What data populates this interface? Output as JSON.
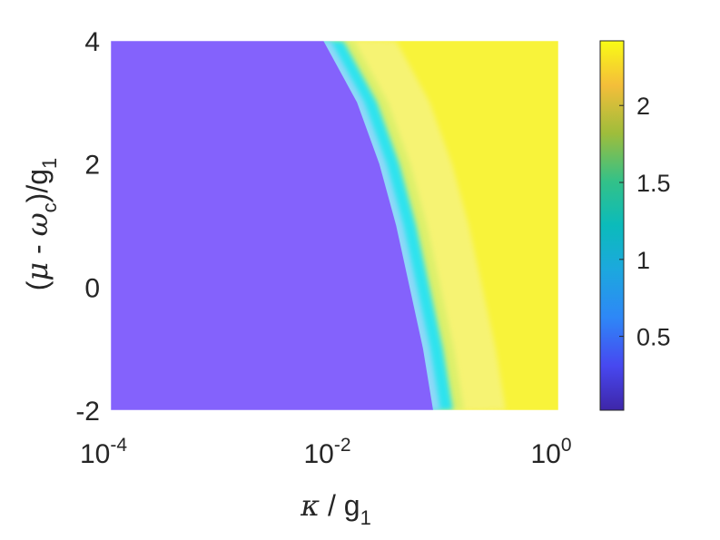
{
  "chart_data": {
    "type": "heatmap",
    "title": "",
    "x_scale": "log",
    "xlim": [
      0.0001,
      1
    ],
    "ylim": [
      -2,
      4
    ],
    "x_ticks": [
      {
        "value": 0.0001,
        "base": "10",
        "exp": "-4"
      },
      {
        "value": 0.01,
        "base": "10",
        "exp": "-2"
      },
      {
        "value": 1,
        "base": "10",
        "exp": "0"
      }
    ],
    "y_ticks": [
      {
        "value": -2,
        "label": "-2"
      },
      {
        "value": 0,
        "label": "0"
      },
      {
        "value": 2,
        "label": "2"
      },
      {
        "value": 4,
        "label": "4"
      }
    ],
    "xlabel": {
      "symbol": "κ",
      "text": " / g",
      "sub": "1"
    },
    "ylabel": {
      "open": "(",
      "mu": "μ",
      "mid": " - ",
      "omega": "ω",
      "sub_c": "c",
      "close": ")/g",
      "sub_1": "1"
    },
    "colorbar": {
      "colormap": "parula",
      "clim": [
        0.02,
        2.42
      ],
      "ticks": [
        {
          "value": 0.5,
          "label": "0.5"
        },
        {
          "value": 1,
          "label": "1"
        },
        {
          "value": 1.5,
          "label": "1.5"
        },
        {
          "value": 2,
          "label": "2"
        }
      ]
    },
    "regions": {
      "low_value": 0.2,
      "boundary_value": 1.0,
      "high_value": 2.3,
      "boundary_curve": [
        {
          "y": 4.0,
          "log10_kappa": -2.1
        },
        {
          "y": 3.0,
          "log10_kappa": -1.8
        },
        {
          "y": 2.0,
          "log10_kappa": -1.6
        },
        {
          "y": 1.0,
          "log10_kappa": -1.45
        },
        {
          "y": 0.0,
          "log10_kappa": -1.33
        },
        {
          "y": -1.0,
          "log10_kappa": -1.21
        },
        {
          "y": -2.0,
          "log10_kappa": -1.12
        }
      ]
    },
    "colors": {
      "low": "#8462fc",
      "boundary": "#2ee3ee",
      "high": "#f8f33a",
      "high_pale": "#f5f39a"
    }
  }
}
